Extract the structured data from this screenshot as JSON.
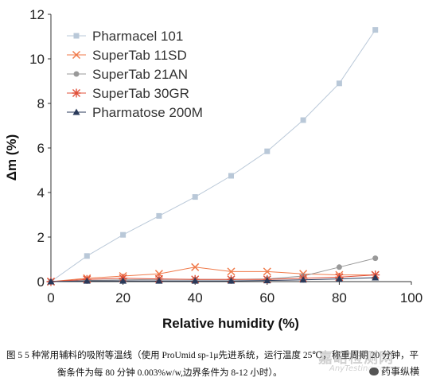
{
  "chart_data": {
    "type": "line",
    "xlabel": "Relative humidity (%)",
    "ylabel": "Δm (%)",
    "xlim": [
      0,
      100
    ],
    "ylim": [
      0,
      12
    ],
    "xticks": [
      0,
      20,
      40,
      60,
      80,
      100
    ],
    "yticks": [
      0,
      2,
      4,
      6,
      8,
      10,
      12
    ],
    "grid": false,
    "legend_position": "top-left",
    "series": [
      {
        "name": "Pharmacel 101",
        "color": "#b9c8d8",
        "marker": "square",
        "x": [
          0,
          10,
          20,
          30,
          40,
          50,
          60,
          70,
          80,
          90
        ],
        "y": [
          0,
          1.15,
          2.1,
          2.95,
          3.8,
          4.75,
          5.85,
          7.25,
          8.9,
          11.3
        ]
      },
      {
        "name": "SuperTab 11SD",
        "color": "#f07a4a",
        "marker": "x",
        "x": [
          0,
          10,
          20,
          30,
          40,
          50,
          60,
          70,
          80,
          90
        ],
        "y": [
          0,
          0.15,
          0.25,
          0.35,
          0.65,
          0.45,
          0.45,
          0.35,
          0.3,
          0.3
        ]
      },
      {
        "name": "SuperTab 21AN",
        "color": "#999999",
        "marker": "circle",
        "x": [
          0,
          10,
          20,
          30,
          40,
          50,
          60,
          70,
          80,
          90
        ],
        "y": [
          0,
          0.05,
          0.08,
          0.1,
          0.1,
          0.1,
          0.12,
          0.25,
          0.65,
          1.05
        ]
      },
      {
        "name": "SuperTab 30GR",
        "color": "#e0503a",
        "marker": "asterisk",
        "x": [
          0,
          10,
          20,
          30,
          40,
          50,
          60,
          70,
          80,
          90
        ],
        "y": [
          0,
          0.1,
          0.15,
          0.12,
          0.1,
          0.1,
          0.1,
          0.15,
          0.2,
          0.3
        ]
      },
      {
        "name": "Pharmatose 200M",
        "color": "#2a3a5a",
        "marker": "triangle",
        "x": [
          0,
          10,
          20,
          30,
          40,
          50,
          60,
          70,
          80,
          90
        ],
        "y": [
          0,
          0.03,
          0.03,
          0.03,
          0.03,
          0.03,
          0.05,
          0.08,
          0.12,
          0.18
        ]
      }
    ]
  },
  "caption": {
    "line1": "图 5   5 种常用辅料的吸附等温线（使用 ProUmid sp-1μ先进系统，运行温度 25℃，称重周期 20 分钟，平",
    "line2": "衡条件为每 80 分钟 0.003%w/w,边界条件为 8-12 小时）。"
  },
  "watermark": {
    "text": "嘉峪检测网",
    "sub": "AnyTesting.com"
  },
  "wechat_badge": {
    "text": "药事纵横"
  }
}
